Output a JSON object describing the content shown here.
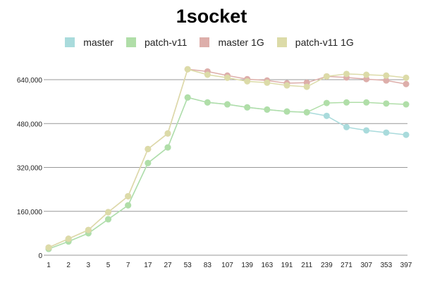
{
  "chart_data": {
    "type": "line",
    "title": "1socket",
    "xlabel": "",
    "ylabel": "",
    "categories": [
      "1",
      "2",
      "3",
      "5",
      "7",
      "17",
      "27",
      "53",
      "83",
      "107",
      "139",
      "163",
      "191",
      "211",
      "239",
      "271",
      "307",
      "353",
      "397"
    ],
    "ylim": [
      0,
      640000
    ],
    "yticks": [
      0,
      160000,
      320000,
      480000,
      640000
    ],
    "ytick_labels": [
      "0",
      "160,000",
      "320,000",
      "480,000",
      "640,000"
    ],
    "grid": true,
    "legend_position": "top",
    "series": [
      {
        "name": "master",
        "color": "#a9dbdc",
        "values": [
          23000,
          50000,
          80000,
          131000,
          182000,
          336000,
          393000,
          575000,
          557000,
          550000,
          539000,
          531000,
          524000,
          521000,
          508000,
          467000,
          455000,
          447000,
          439000
        ]
      },
      {
        "name": "patch-v11",
        "color": "#b0dea8",
        "values": [
          23000,
          50000,
          80000,
          131000,
          182000,
          336000,
          393000,
          575000,
          557000,
          550000,
          539000,
          531000,
          524000,
          521000,
          555000,
          557000,
          557000,
          553000,
          550000
        ]
      },
      {
        "name": "master 1G",
        "color": "#ddaeaa",
        "values": [
          28000,
          60000,
          92000,
          157000,
          215000,
          387000,
          444000,
          678000,
          670000,
          655000,
          642000,
          637000,
          627000,
          629000,
          652000,
          648000,
          642000,
          637000,
          624000
        ]
      },
      {
        "name": "patch-v11 1G",
        "color": "#dcdba8",
        "values": [
          28000,
          60000,
          92000,
          157000,
          215000,
          387000,
          444000,
          678000,
          658000,
          647000,
          634000,
          629000,
          619000,
          614000,
          652000,
          661000,
          658000,
          655000,
          647000
        ]
      }
    ]
  },
  "legend": [
    {
      "label": "master",
      "color": "#a9dbdc"
    },
    {
      "label": "patch-v11",
      "color": "#b0dea8"
    },
    {
      "label": "master 1G",
      "color": "#ddaeaa"
    },
    {
      "label": "patch-v11 1G",
      "color": "#dcdba8"
    }
  ]
}
